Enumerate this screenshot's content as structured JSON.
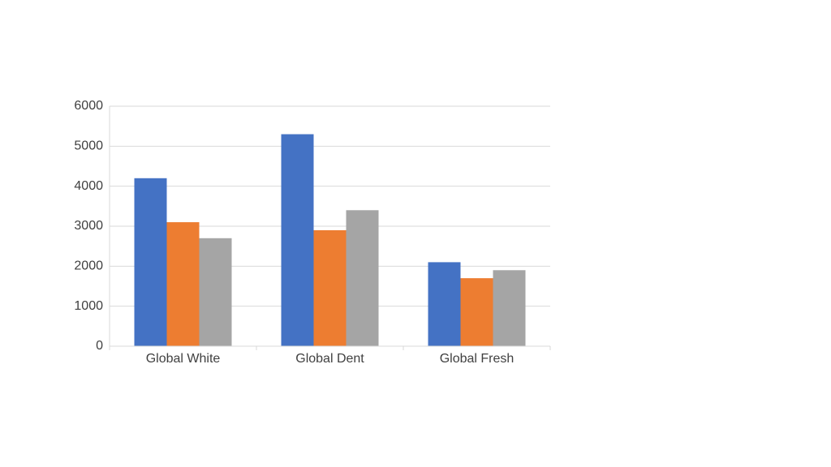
{
  "chart_data": {
    "type": "bar",
    "categories": [
      "Global White",
      "Global Dent",
      "Global Fresh"
    ],
    "series": [
      {
        "color": "#4472c4",
        "values": [
          4200,
          5300,
          2100
        ]
      },
      {
        "color": "#ed7d31",
        "values": [
          3100,
          2900,
          1700
        ]
      },
      {
        "color": "#a5a5a5",
        "values": [
          2700,
          3400,
          1900
        ]
      }
    ],
    "ylim": [
      0,
      6000
    ],
    "yticks": [
      0,
      1000,
      2000,
      3000,
      4000,
      5000,
      6000
    ],
    "grid": true
  }
}
